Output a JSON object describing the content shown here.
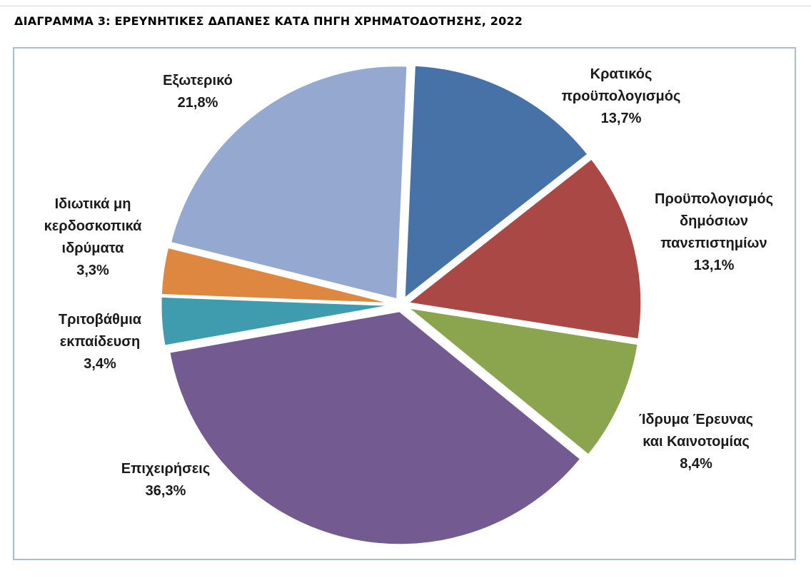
{
  "title": "ΔΙΑΓΡΑΜΜΑ 3:  ΕΡΕΥΝΗΤΙΚΕΣ ΔΑΠΑΝΕΣ ΚΑΤΑ ΠΗΓΗ ΧΡΗΜΑΤΟΔΟΤΗΣΗΣ, 2022",
  "chart_data": {
    "type": "pie",
    "title": "ΔΙΑΓΡΑΜΜΑ 3:  ΕΡΕΥΝΗΤΙΚΕΣ ΔΑΠΑΝΕΣ ΚΑΤΑ ΠΗΓΗ ΧΡΗΜΑΤΟΔΟΤΗΣΗΣ, 2022",
    "slices": [
      {
        "label_lines": [
          "Κρατικός",
          "προϋπολογισμός"
        ],
        "value_text": "13,7%",
        "value": 13.7,
        "color": "#4672a8"
      },
      {
        "label_lines": [
          "Προϋπολογισμός",
          "δημόσιων",
          "πανεπιστημίων"
        ],
        "value_text": "13,1%",
        "value": 13.1,
        "color": "#a94845"
      },
      {
        "label_lines": [
          "Ίδρυμα Έρευνας",
          "και Καινοτομίας"
        ],
        "value_text": "8,4%",
        "value": 8.4,
        "color": "#8aa54d"
      },
      {
        "label_lines": [
          "Επιχειρήσεις"
        ],
        "value_text": "36,3%",
        "value": 36.3,
        "color": "#735a90"
      },
      {
        "label_lines": [
          "Τριτοβάθμια",
          "εκπαίδευση"
        ],
        "value_text": "3,4%",
        "value": 3.4,
        "color": "#3f9caf"
      },
      {
        "label_lines": [
          "Ιδιωτικά μη",
          "κερδοσκοπικά",
          "ιδρύματα"
        ],
        "value_text": "3,3%",
        "value": 3.3,
        "color": "#dd8740"
      },
      {
        "label_lines": [
          "Εξωτερικό"
        ],
        "value_text": "21,8%",
        "value": 21.8,
        "color": "#95a9d0"
      }
    ]
  }
}
